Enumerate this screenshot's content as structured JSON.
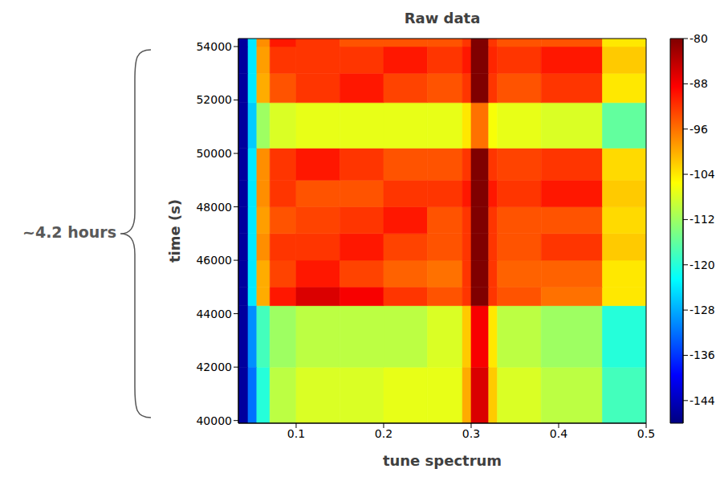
{
  "chart_data": {
    "type": "heatmap",
    "title": "Raw data",
    "x_label": "tune spectrum",
    "y_label": "time (s)",
    "annotation": "~4.2 hours",
    "xlim": [
      0.034,
      0.5
    ],
    "xticks": [
      0.1,
      0.2,
      0.3,
      0.4,
      0.5
    ],
    "ylim": [
      39900,
      54300
    ],
    "yticks": [
      40000,
      42000,
      44000,
      46000,
      48000,
      50000,
      52000,
      54000
    ],
    "x_edges": [
      0.034,
      0.045,
      0.055,
      0.07,
      0.1,
      0.15,
      0.2,
      0.25,
      0.29,
      0.3,
      0.32,
      0.33,
      0.38,
      0.45,
      0.5
    ],
    "y_edges": [
      39900,
      42000,
      44300,
      45000,
      46000,
      47000,
      48000,
      49000,
      50200,
      51900,
      53000,
      54000,
      54300
    ],
    "cells": [
      [
        -146,
        -132,
        -120,
        -110,
        -108,
        -108,
        -107,
        -107,
        -100,
        -86,
        -102,
        -108,
        -110,
        -118
      ],
      [
        -146,
        -130,
        -118,
        -112,
        -110,
        -110,
        -110,
        -108,
        -102,
        -88,
        -104,
        -110,
        -112,
        -120
      ],
      [
        -146,
        -124,
        -100,
        -90,
        -86,
        -88,
        -92,
        -94,
        -92,
        -80,
        -92,
        -94,
        -96,
        -104
      ],
      [
        -146,
        -124,
        -100,
        -93,
        -90,
        -93,
        -95,
        -96,
        -92,
        -80,
        -92,
        -95,
        -95,
        -104
      ],
      [
        -146,
        -124,
        -98,
        -92,
        -92,
        -90,
        -93,
        -94,
        -92,
        -80,
        -92,
        -94,
        -92,
        -102
      ],
      [
        -146,
        -124,
        -99,
        -94,
        -93,
        -92,
        -90,
        -94,
        -92,
        -80,
        -92,
        -94,
        -94,
        -103
      ],
      [
        -146,
        -124,
        -98,
        -92,
        -94,
        -94,
        -92,
        -92,
        -90,
        -80,
        -90,
        -92,
        -90,
        -102
      ],
      [
        -146,
        -124,
        -98,
        -92,
        -90,
        -92,
        -94,
        -94,
        -92,
        -80,
        -92,
        -93,
        -92,
        -103
      ],
      [
        -146,
        -126,
        -112,
        -108,
        -107,
        -107,
        -107,
        -107,
        -104,
        -96,
        -106,
        -107,
        -108,
        -116
      ],
      [
        -146,
        -124,
        -100,
        -94,
        -92,
        -90,
        -93,
        -94,
        -92,
        -80,
        -92,
        -94,
        -92,
        -104
      ],
      [
        -146,
        -124,
        -99,
        -92,
        -92,
        -92,
        -90,
        -92,
        -90,
        -80,
        -91,
        -92,
        -90,
        -102
      ],
      [
        -146,
        -124,
        -98,
        -90,
        -92,
        -94,
        -94,
        -94,
        -92,
        -80,
        -92,
        -94,
        -94,
        -104
      ]
    ],
    "colorbar": {
      "range": [
        -148,
        -80
      ],
      "ticks": [
        -80,
        -88,
        -96,
        -104,
        -112,
        -120,
        -128,
        -136,
        -144
      ]
    }
  }
}
